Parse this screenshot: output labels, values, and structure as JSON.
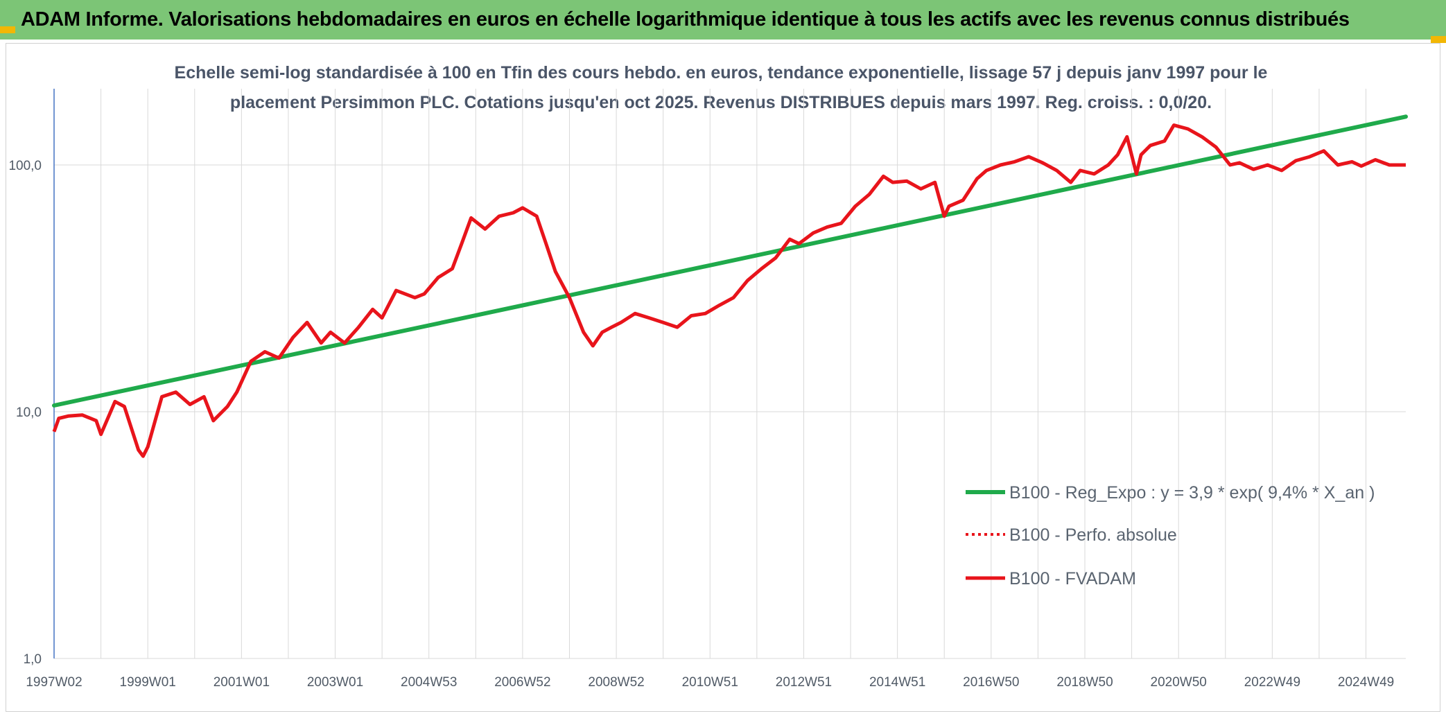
{
  "banner": {
    "title": "ADAM Informe. Valorisations hebdomadaires en euros en échelle logarithmique identique à tous les actifs avec les revenus connus distribués"
  },
  "colors": {
    "banner_bg": "#7cc576",
    "corner_accent": "#f2b705",
    "regression_line": "#1faa4b",
    "fvadam_line": "#e8141b",
    "perfo_line": "#e8141b",
    "grid": "#d9d9d9",
    "axis": "#4472c4"
  },
  "chart_data": {
    "type": "line",
    "subtitle_lines": [
      "Echelle semi-log standardisée à 100 en Tfin des cours hebdo. en euros, tendance exponentielle, lissage 57 j depuis janv 1997 pour le",
      "placement Persimmon PLC. Cotations jusqu'en oct 2025. Revenus DISTRIBUES depuis mars 1997. Reg. croiss. : 0,0/20."
    ],
    "y_scale": "log",
    "ylim": [
      1,
      200
    ],
    "y_ticks": [
      {
        "value": 1,
        "label": "1,0"
      },
      {
        "value": 10,
        "label": "10,0"
      },
      {
        "value": 100,
        "label": "100,0"
      }
    ],
    "xlim": [
      1997.0,
      2025.85
    ],
    "x_ticks": [
      {
        "year": 1997.0,
        "label": "1997W02"
      },
      {
        "year": 1999.0,
        "label": "1999W01"
      },
      {
        "year": 2001.0,
        "label": "2001W01"
      },
      {
        "year": 2003.0,
        "label": "2003W01"
      },
      {
        "year": 2005.0,
        "label": "2004W53"
      },
      {
        "year": 2007.0,
        "label": "2006W52"
      },
      {
        "year": 2009.0,
        "label": "2008W52"
      },
      {
        "year": 2011.0,
        "label": "2010W51"
      },
      {
        "year": 2013.0,
        "label": "2012W51"
      },
      {
        "year": 2015.0,
        "label": "2014W51"
      },
      {
        "year": 2017.0,
        "label": "2016W50"
      },
      {
        "year": 2019.0,
        "label": "2018W50"
      },
      {
        "year": 2021.0,
        "label": "2020W50"
      },
      {
        "year": 2023.0,
        "label": "2022W49"
      },
      {
        "year": 2025.0,
        "label": "2024W49"
      }
    ],
    "minor_grid_years": [
      1998,
      2000,
      2002,
      2004,
      2006,
      2008,
      2010,
      2012,
      2014,
      2016,
      2018,
      2020,
      2022,
      2024
    ],
    "grid": true,
    "legend_position": "bottom-right",
    "series": [
      {
        "name": "B100 - Reg_Expo : y = 3,9 * exp( 9,4% *  X_an )",
        "style": "solid",
        "color": "#1faa4b",
        "x": [
          1997.0,
          2025.85
        ],
        "values": [
          10.6,
          157
        ]
      },
      {
        "name": "B100 - Perfo. absolue",
        "style": "dotted",
        "color": "#e8141b",
        "x": [],
        "values": []
      },
      {
        "name": "B100 - FVADAM",
        "style": "solid",
        "color": "#e8141b",
        "x": [
          1997.0,
          1997.1,
          1997.3,
          1997.6,
          1997.9,
          1998.0,
          1998.3,
          1998.5,
          1998.8,
          1998.9,
          1999.0,
          1999.3,
          1999.6,
          1999.9,
          2000.2,
          2000.4,
          2000.7,
          2000.9,
          2001.2,
          2001.5,
          2001.8,
          2002.1,
          2002.4,
          2002.7,
          2002.9,
          2003.2,
          2003.5,
          2003.8,
          2004.0,
          2004.3,
          2004.7,
          2004.9,
          2005.2,
          2005.5,
          2005.7,
          2005.9,
          2006.2,
          2006.5,
          2006.8,
          2007.0,
          2007.3,
          2007.5,
          2007.7,
          2008.0,
          2008.3,
          2008.5,
          2008.7,
          2008.9,
          2009.1,
          2009.4,
          2009.7,
          2010.0,
          2010.3,
          2010.6,
          2010.9,
          2011.2,
          2011.5,
          2011.8,
          2012.1,
          2012.4,
          2012.7,
          2012.9,
          2013.2,
          2013.5,
          2013.8,
          2014.1,
          2014.4,
          2014.7,
          2014.9,
          2015.2,
          2015.5,
          2015.8,
          2016.0,
          2016.1,
          2016.4,
          2016.7,
          2016.9,
          2017.2,
          2017.5,
          2017.8,
          2018.1,
          2018.4,
          2018.7,
          2018.9,
          2019.2,
          2019.5,
          2019.7,
          2019.9,
          2020.1,
          2020.2,
          2020.4,
          2020.7,
          2020.9,
          2021.2,
          2021.5,
          2021.8,
          2022.1,
          2022.3,
          2022.6,
          2022.9,
          2023.2,
          2023.5,
          2023.8,
          2024.1,
          2024.4,
          2024.7,
          2024.9,
          2025.2,
          2025.5,
          2025.85
        ],
        "values": [
          8.3,
          9.4,
          9.6,
          9.7,
          9.2,
          8.1,
          11.0,
          10.5,
          7.0,
          6.6,
          7.2,
          11.5,
          12.0,
          10.7,
          11.5,
          9.2,
          10.5,
          12.0,
          16.0,
          17.5,
          16.5,
          20.0,
          23.0,
          19.0,
          21.0,
          19.0,
          22.0,
          26.0,
          24.0,
          31.0,
          29.0,
          30.0,
          35.0,
          38.0,
          48.0,
          61.0,
          55.0,
          62.0,
          64.0,
          67.0,
          62.0,
          48.0,
          37.0,
          29.0,
          21.0,
          18.5,
          21.0,
          22.0,
          23.0,
          25.0,
          24.0,
          23.0,
          22.0,
          24.5,
          25.0,
          27.0,
          29.0,
          34.0,
          38.0,
          42.0,
          50.0,
          48.0,
          53.0,
          56.0,
          58.0,
          68.0,
          76.0,
          90.0,
          85.0,
          86.0,
          80.0,
          85.0,
          62.0,
          68.0,
          72.0,
          88.0,
          95.0,
          100.0,
          103.0,
          108.0,
          102.0,
          95.0,
          85.0,
          95.0,
          92.0,
          100.0,
          110.0,
          130.0,
          92.0,
          110.0,
          120.0,
          125.0,
          145.0,
          140.0,
          130.0,
          118.0,
          100.0,
          102.0,
          96.0,
          100.0,
          95.0,
          104.0,
          108.0,
          114.0,
          100.0,
          103.0,
          99.0,
          105.0,
          100.0,
          100.0
        ]
      }
    ]
  }
}
